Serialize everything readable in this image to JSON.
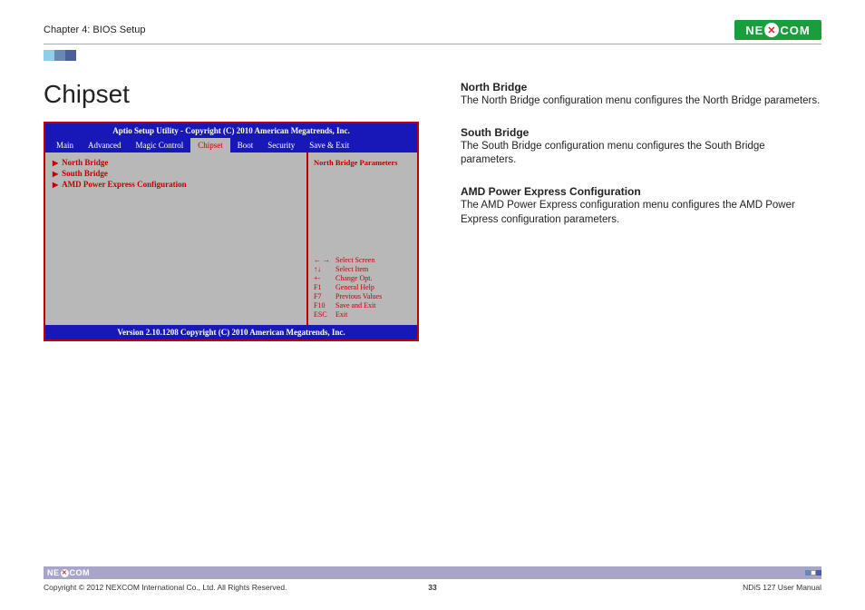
{
  "chapter": "Chapter 4: BIOS Setup",
  "logo_text_left": "NE",
  "logo_text_right": "COM",
  "header_square_colors": [
    "#8dcfe7",
    "#6887b5",
    "#4c5f9c"
  ],
  "section_title": "Chipset",
  "bios": {
    "title": "Aptio  Setup  Utility - Copyright (C) 2010 American Megatrends, Inc.",
    "tabs": [
      "Main",
      "Advanced",
      "Magic Control",
      "Chipset",
      "Boot",
      "Security",
      "Save & Exit"
    ],
    "active_tab": "Chipset",
    "items": [
      "North Bridge",
      "South Bridge",
      "AMD Power Express Configuration"
    ],
    "hint": "North Bridge Parameters",
    "keys": [
      {
        "k": "← →",
        "v": "Select Screen"
      },
      {
        "k": "↑↓",
        "v": "Select Item"
      },
      {
        "k": "+-",
        "v": "Change Opt."
      },
      {
        "k": "F1",
        "v": "General Help"
      },
      {
        "k": "F7",
        "v": "Previous Values"
      },
      {
        "k": "F10",
        "v": "Save and Exit"
      },
      {
        "k": "ESC",
        "v": "Exit"
      }
    ],
    "footer": "Version 2.10.1208 Copyright (C) 2010 American Megatrends, Inc."
  },
  "descriptions": [
    {
      "h": "North Bridge",
      "p": "The North Bridge configuration menu configures the North Bridge parameters."
    },
    {
      "h": "South Bridge",
      "p": "The South Bridge configuration menu configures the South Bridge parameters."
    },
    {
      "h": "AMD Power Express Configuration",
      "p": "The AMD Power Express configuration menu configures the AMD Power Express configuration parameters."
    }
  ],
  "footer": {
    "copyright": "Copyright © 2012 NEXCOM International Co., Ltd. All Rights Reserved.",
    "page": "33",
    "doc": "NDiS 127 User Manual",
    "dot_colors": [
      "#6887b5",
      "#ffffff",
      "#4c5f9c"
    ]
  }
}
